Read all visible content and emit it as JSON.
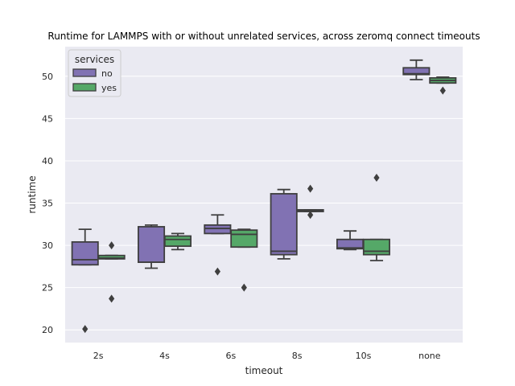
{
  "chart_data": {
    "type": "box",
    "title": "Runtime for LAMMPS with or without unrelated services, across zeromq connect timeouts",
    "xlabel": "timeout",
    "ylabel": "runtime",
    "ylim": [
      18.5,
      53.5
    ],
    "yticks": [
      20,
      25,
      30,
      35,
      40,
      45,
      50
    ],
    "categories": [
      "2s",
      "4s",
      "6s",
      "8s",
      "10s",
      "none"
    ],
    "grid": true,
    "background": "#EAEAF2",
    "legend": {
      "title": "services",
      "position": "top-left"
    },
    "series": [
      {
        "name": "no",
        "color": "#8172B3",
        "boxes": [
          {
            "category": "2s",
            "whisker_low": 27.7,
            "q1": 27.7,
            "median": 28.3,
            "q3": 30.4,
            "whisker_high": 31.9,
            "outliers": [
              20.1
            ]
          },
          {
            "category": "4s",
            "whisker_low": 27.3,
            "q1": 28.0,
            "median": 28.0,
            "q3": 32.2,
            "whisker_high": 32.4,
            "outliers": []
          },
          {
            "category": "6s",
            "whisker_low": 31.4,
            "q1": 31.4,
            "median": 32.0,
            "q3": 32.4,
            "whisker_high": 33.6,
            "outliers": [
              26.9
            ]
          },
          {
            "category": "8s",
            "whisker_low": 28.4,
            "q1": 28.9,
            "median": 29.3,
            "q3": 36.1,
            "whisker_high": 36.6,
            "outliers": []
          },
          {
            "category": "10s",
            "whisker_low": 29.5,
            "q1": 29.6,
            "median": 29.7,
            "q3": 30.7,
            "whisker_high": 31.7,
            "outliers": []
          },
          {
            "category": "none",
            "whisker_low": 49.6,
            "q1": 50.2,
            "median": 50.3,
            "q3": 51.0,
            "whisker_high": 51.9,
            "outliers": []
          }
        ]
      },
      {
        "name": "yes",
        "color": "#55A868",
        "boxes": [
          {
            "category": "2s",
            "whisker_low": 28.4,
            "q1": 28.4,
            "median": 28.5,
            "q3": 28.8,
            "whisker_high": 28.8,
            "outliers": [
              30.0,
              23.7
            ]
          },
          {
            "category": "4s",
            "whisker_low": 29.5,
            "q1": 29.9,
            "median": 30.7,
            "q3": 31.1,
            "whisker_high": 31.4,
            "outliers": []
          },
          {
            "category": "6s",
            "whisker_low": 29.8,
            "q1": 29.8,
            "median": 31.3,
            "q3": 31.8,
            "whisker_high": 31.9,
            "outliers": [
              25.0
            ]
          },
          {
            "category": "8s",
            "whisker_low": 34.0,
            "q1": 34.0,
            "median": 34.1,
            "q3": 34.2,
            "whisker_high": 34.2,
            "outliers": [
              36.7,
              33.6
            ]
          },
          {
            "category": "10s",
            "whisker_low": 28.2,
            "q1": 28.9,
            "median": 29.3,
            "q3": 30.7,
            "whisker_high": 30.7,
            "outliers": [
              38.0
            ]
          },
          {
            "category": "none",
            "whisker_low": 49.2,
            "q1": 49.2,
            "median": 49.5,
            "q3": 49.8,
            "whisker_high": 49.9,
            "outliers": [
              48.3
            ]
          }
        ]
      }
    ]
  }
}
